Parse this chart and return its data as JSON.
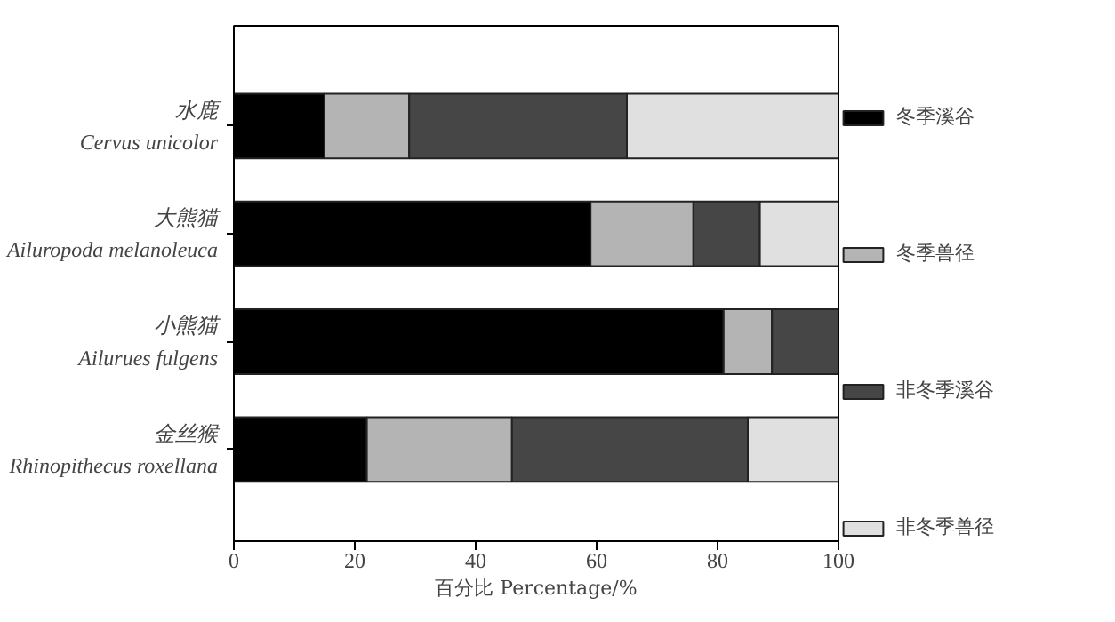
{
  "chart_data": {
    "type": "bar",
    "orientation": "horizontal",
    "stacked": true,
    "xlabel": "百分比 Percentage/%",
    "categories": [
      "水鹿\nCervus unicolor",
      "大熊猫\nAiluropoda melanoleuca",
      "小熊猫\nAilurues fulgens",
      "金丝猴\nRhinopithecus roxellana"
    ],
    "series": [
      {
        "name": "冬季溪谷",
        "color": "#000000",
        "values": [
          15,
          59,
          81,
          22
        ]
      },
      {
        "name": "冬季兽径",
        "color": "#b4b4b4",
        "values": [
          14,
          17,
          8,
          24
        ]
      },
      {
        "name": "非冬季溪谷",
        "color": "#464646",
        "values": [
          36,
          11,
          11,
          39
        ]
      },
      {
        "name": "非冬季兽径",
        "color": "#e0e0e0",
        "values": [
          35,
          13,
          0,
          15
        ]
      }
    ],
    "xlim": [
      0,
      100
    ],
    "xticks": [
      0,
      20,
      40,
      60,
      80,
      100
    ],
    "grid": false,
    "legend": "right"
  }
}
